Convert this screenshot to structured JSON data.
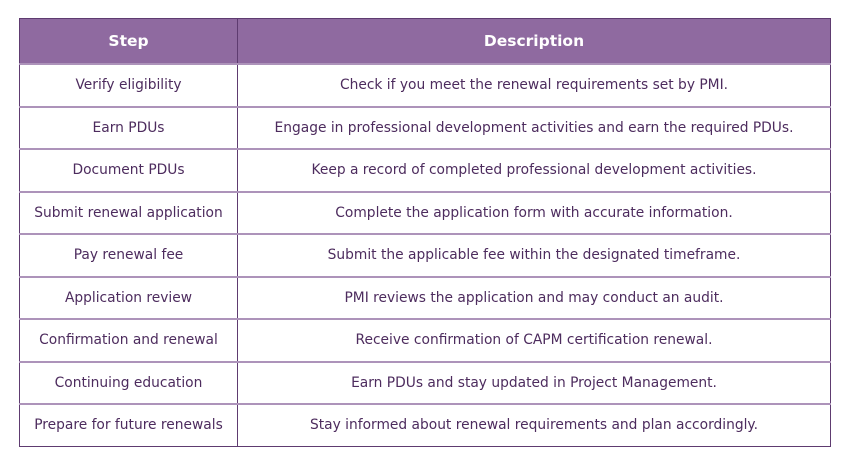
{
  "table": {
    "headers": [
      "Step",
      "Description"
    ],
    "rows": [
      [
        "Verify eligibility",
        "Check if you meet the renewal requirements set by PMI."
      ],
      [
        "Earn PDUs",
        "Engage in professional development activities and earn the required PDUs."
      ],
      [
        "Document PDUs",
        "Keep a record of completed professional development activities."
      ],
      [
        "Submit renewal application",
        "Complete the application form with accurate information."
      ],
      [
        "Pay renewal fee",
        "Submit the applicable fee within the designated timeframe."
      ],
      [
        "Application review",
        "PMI reviews the application and may conduct an audit."
      ],
      [
        "Confirmation and renewal",
        "Receive confirmation of CAPM certification renewal."
      ],
      [
        "Continuing education",
        "Earn PDUs and stay updated in Project Management."
      ],
      [
        "Prepare for future renewals",
        "Stay informed about renewal requirements and plan accordingly."
      ]
    ]
  },
  "colors": {
    "header_bg": "#8f6aa0",
    "text": "#4d2c5e",
    "border": "#5e3b70"
  }
}
